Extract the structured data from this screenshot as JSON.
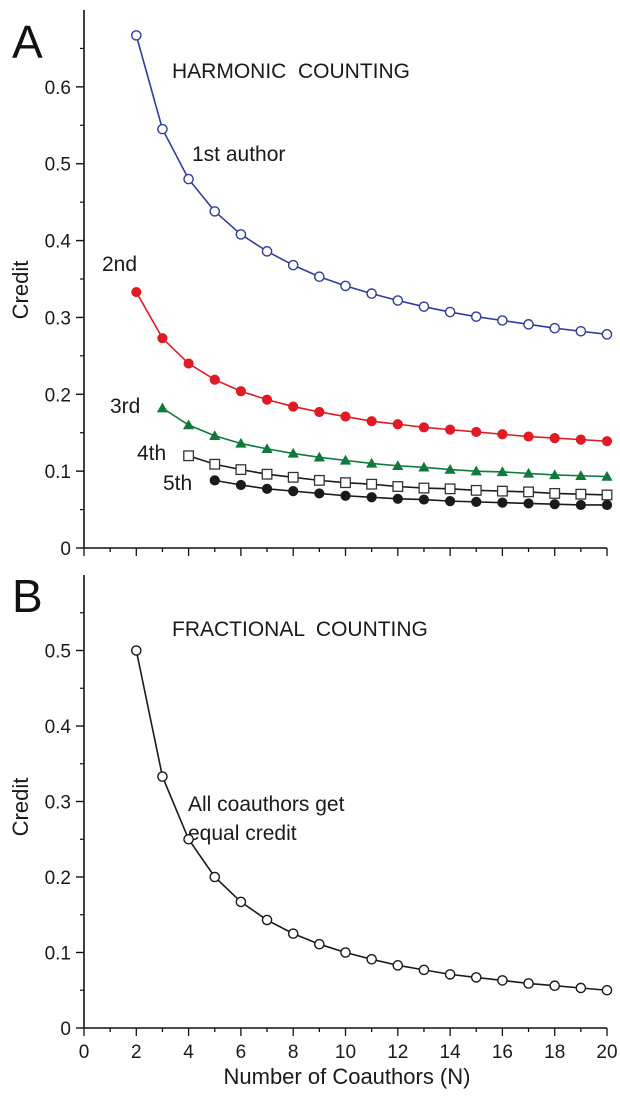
{
  "chart_data": [
    {
      "type": "line",
      "panel": "A",
      "title": "HARMONIC  COUNTING",
      "xlabel": "",
      "ylabel": "Credit",
      "xlim": [
        0,
        20
      ],
      "ylim": [
        0,
        0.7
      ],
      "xticks": [
        0,
        2,
        4,
        6,
        8,
        10,
        12,
        14,
        16,
        18,
        20
      ],
      "xtick_labels": [
        "",
        "",
        "",
        "",
        "",
        "",
        "",
        "",
        "",
        "",
        ""
      ],
      "yticks": [
        0,
        0.1,
        0.2,
        0.3,
        0.4,
        0.5,
        0.6
      ],
      "ytick_labels": [
        "0",
        "0.1",
        "0.2",
        "0.3",
        "0.4",
        "0.5",
        "0.6"
      ],
      "grid": false,
      "series": [
        {
          "name": "1st author",
          "color": "#2f3d9e",
          "marker": "circle-open",
          "x": [
            2,
            3,
            4,
            5,
            6,
            7,
            8,
            9,
            10,
            11,
            12,
            13,
            14,
            15,
            16,
            17,
            18,
            19,
            20
          ],
          "y": [
            0.667,
            0.545,
            0.48,
            0.438,
            0.408,
            0.386,
            0.368,
            0.353,
            0.341,
            0.331,
            0.322,
            0.314,
            0.307,
            0.301,
            0.296,
            0.291,
            0.286,
            0.282,
            0.278
          ]
        },
        {
          "name": "2nd",
          "color": "#e01b24",
          "marker": "circle-filled",
          "x": [
            2,
            3,
            4,
            5,
            6,
            7,
            8,
            9,
            10,
            11,
            12,
            13,
            14,
            15,
            16,
            17,
            18,
            19,
            20
          ],
          "y": [
            0.333,
            0.273,
            0.24,
            0.219,
            0.204,
            0.193,
            0.184,
            0.177,
            0.171,
            0.165,
            0.161,
            0.157,
            0.154,
            0.151,
            0.148,
            0.145,
            0.143,
            0.141,
            0.139
          ]
        },
        {
          "name": "3rd",
          "color": "#0f7a3c",
          "marker": "triangle-filled",
          "x": [
            3,
            4,
            5,
            6,
            7,
            8,
            9,
            10,
            11,
            12,
            13,
            14,
            15,
            16,
            17,
            18,
            19,
            20
          ],
          "y": [
            0.182,
            0.16,
            0.146,
            0.136,
            0.129,
            0.123,
            0.118,
            0.114,
            0.11,
            0.107,
            0.105,
            0.102,
            0.1,
            0.099,
            0.097,
            0.095,
            0.094,
            0.093
          ]
        },
        {
          "name": "4th",
          "color": "#1a1a1a",
          "marker": "square-open",
          "x": [
            4,
            5,
            6,
            7,
            8,
            9,
            10,
            11,
            12,
            13,
            14,
            15,
            16,
            17,
            18,
            19,
            20
          ],
          "y": [
            0.12,
            0.109,
            0.102,
            0.096,
            0.092,
            0.088,
            0.085,
            0.083,
            0.08,
            0.078,
            0.077,
            0.075,
            0.074,
            0.073,
            0.071,
            0.07,
            0.069
          ]
        },
        {
          "name": "5th",
          "color": "#1a1a1a",
          "marker": "circle-filled",
          "x": [
            5,
            6,
            7,
            8,
            9,
            10,
            11,
            12,
            13,
            14,
            15,
            16,
            17,
            18,
            19,
            20
          ],
          "y": [
            0.088,
            0.082,
            0.077,
            0.074,
            0.071,
            0.068,
            0.066,
            0.064,
            0.063,
            0.061,
            0.06,
            0.059,
            0.058,
            0.057,
            0.056,
            0.056
          ]
        }
      ]
    },
    {
      "type": "line",
      "panel": "B",
      "title": "FRACTIONAL  COUNTING",
      "annotation": [
        "All coauthors get",
        "equal credit"
      ],
      "xlabel": "Number of Coauthors (N)",
      "ylabel": "Credit",
      "xlim": [
        0,
        20
      ],
      "ylim": [
        0,
        0.6
      ],
      "xticks": [
        0,
        2,
        4,
        6,
        8,
        10,
        12,
        14,
        16,
        18,
        20
      ],
      "xtick_labels": [
        "0",
        "2",
        "4",
        "6",
        "8",
        "10",
        "12",
        "14",
        "16",
        "18",
        "20"
      ],
      "yticks": [
        0,
        0.1,
        0.2,
        0.3,
        0.4,
        0.5
      ],
      "ytick_labels": [
        "0",
        "0.1",
        "0.2",
        "0.3",
        "0.4",
        "0.5"
      ],
      "grid": false,
      "series": [
        {
          "name": "",
          "color": "#1a1a1a",
          "marker": "circle-open",
          "x": [
            2,
            3,
            4,
            5,
            6,
            7,
            8,
            9,
            10,
            11,
            12,
            13,
            14,
            15,
            16,
            17,
            18,
            19,
            20
          ],
          "y": [
            0.5,
            0.333,
            0.25,
            0.2,
            0.167,
            0.143,
            0.125,
            0.111,
            0.1,
            0.091,
            0.083,
            0.077,
            0.071,
            0.067,
            0.063,
            0.059,
            0.056,
            0.053,
            0.05
          ]
        }
      ]
    }
  ]
}
